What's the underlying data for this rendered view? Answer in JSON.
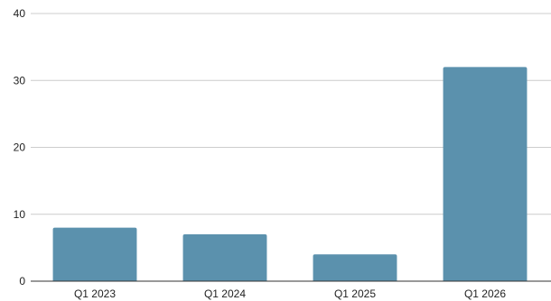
{
  "chart_data": {
    "type": "bar",
    "categories": [
      "Q1 2023",
      "Q1 2024",
      "Q1 2025",
      "Q1 2026"
    ],
    "values": [
      8,
      7,
      4,
      32
    ],
    "title": "",
    "xlabel": "",
    "ylabel": "",
    "ylim": [
      0,
      40
    ],
    "yticks": [
      0,
      10,
      20,
      30,
      40
    ],
    "grid": true,
    "legend": "none",
    "bar_color": "#5b91ad"
  }
}
